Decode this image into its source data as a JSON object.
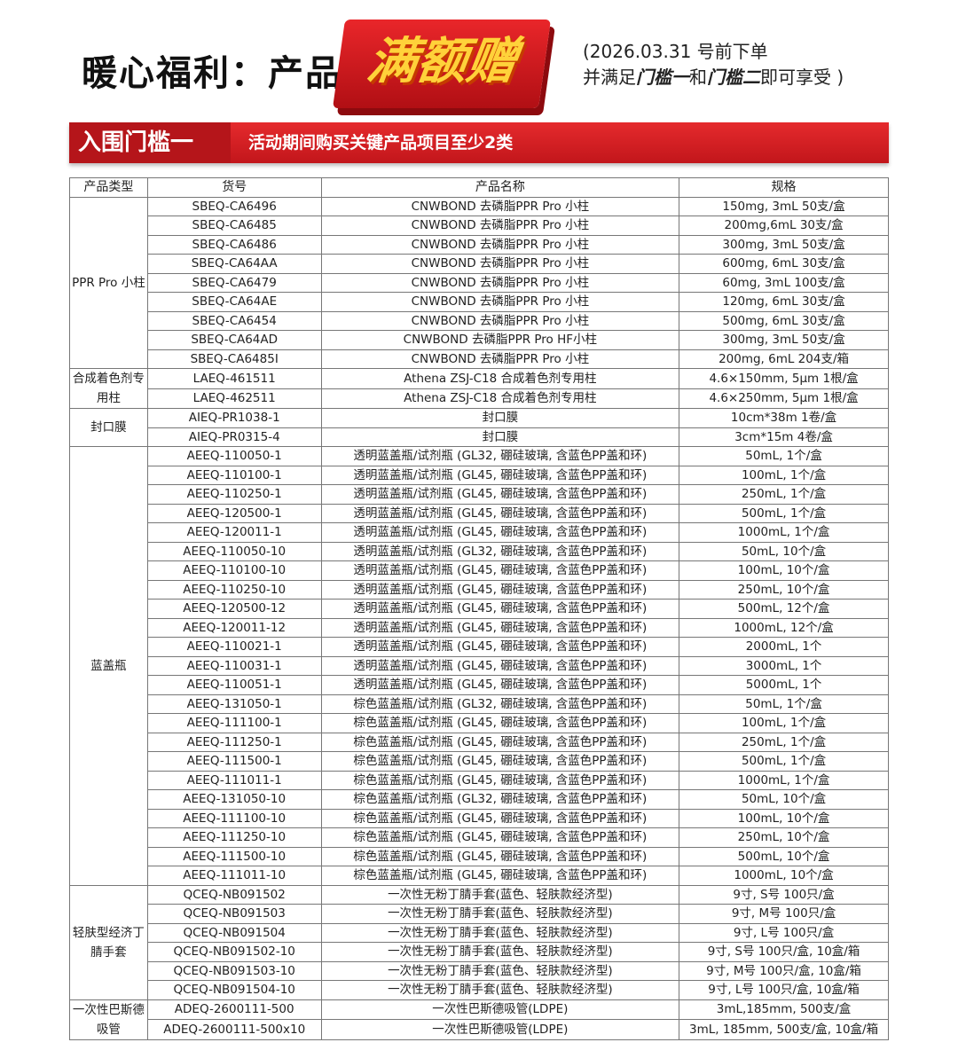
{
  "header": {
    "title": "暖心福利：产品",
    "promo": "满额赠",
    "note_line1": "(2026.03.31 号前下单",
    "note_pre": "并满足",
    "note_b1": "门槛一",
    "note_mid": "和",
    "note_b2": "门槛二",
    "note_post": "即可享受 )"
  },
  "banner": {
    "tag": "入围门槛一",
    "desc": "活动期间购买关键产品项目至少2类"
  },
  "table": {
    "columns": [
      "产品类型",
      "货号",
      "产品名称",
      "规格"
    ],
    "groups": [
      {
        "type": "PPR Pro 小柱",
        "rows": [
          [
            "SBEQ-CA6496",
            "CNWBOND 去磷脂PPR Pro 小柱",
            "150mg, 3mL 50支/盒"
          ],
          [
            "SBEQ-CA6485",
            "CNWBOND 去磷脂PPR Pro 小柱",
            "200mg,6mL 30支/盒"
          ],
          [
            "SBEQ-CA6486",
            "CNWBOND 去磷脂PPR Pro 小柱",
            "300mg, 3mL 50支/盒"
          ],
          [
            "SBEQ-CA64AA",
            "CNWBOND 去磷脂PPR Pro 小柱",
            "600mg, 6mL 30支/盒"
          ],
          [
            "SBEQ-CA6479",
            "CNWBOND 去磷脂PPR Pro 小柱",
            "60mg, 3mL 100支/盒"
          ],
          [
            "SBEQ-CA64AE",
            "CNWBOND 去磷脂PPR Pro 小柱",
            "120mg, 6mL 30支/盒"
          ],
          [
            "SBEQ-CA6454",
            "CNWBOND 去磷脂PPR Pro 小柱",
            "500mg, 6mL 30支/盒"
          ],
          [
            "SBEQ-CA64AD",
            "CNWBOND 去磷脂PPR Pro HF小柱",
            "300mg, 3mL 50支/盒"
          ],
          [
            "SBEQ-CA6485I",
            "CNWBOND 去磷脂PPR Pro 小柱",
            "200mg, 6mL 204支/箱"
          ]
        ]
      },
      {
        "type": "合成着色剂专用柱",
        "rows": [
          [
            "LAEQ-461511",
            "Athena ZSJ-C18 合成着色剂专用柱",
            "4.6×150mm, 5μm 1根/盒"
          ],
          [
            "LAEQ-462511",
            "Athena ZSJ-C18 合成着色剂专用柱",
            "4.6×250mm, 5μm 1根/盒"
          ]
        ]
      },
      {
        "type": "封口膜",
        "rows": [
          [
            "AIEQ-PR1038-1",
            "封口膜",
            "10cm*38m 1卷/盒"
          ],
          [
            "AIEQ-PR0315-4",
            "封口膜",
            "3cm*15m 4卷/盒"
          ]
        ]
      },
      {
        "type": "蓝盖瓶",
        "rows": [
          [
            "AEEQ-110050-1",
            "透明蓝盖瓶/试剂瓶 (GL32, 硼硅玻璃, 含蓝色PP盖和环)",
            "50mL, 1个/盒"
          ],
          [
            "AEEQ-110100-1",
            "透明蓝盖瓶/试剂瓶 (GL45, 硼硅玻璃, 含蓝色PP盖和环)",
            "100mL, 1个/盒"
          ],
          [
            "AEEQ-110250-1",
            "透明蓝盖瓶/试剂瓶 (GL45, 硼硅玻璃, 含蓝色PP盖和环)",
            "250mL, 1个/盒"
          ],
          [
            "AEEQ-120500-1",
            "透明蓝盖瓶/试剂瓶 (GL45, 硼硅玻璃, 含蓝色PP盖和环)",
            "500mL, 1个/盒"
          ],
          [
            "AEEQ-120011-1",
            "透明蓝盖瓶/试剂瓶 (GL45, 硼硅玻璃, 含蓝色PP盖和环)",
            "1000mL, 1个/盒"
          ],
          [
            "AEEQ-110050-10",
            "透明蓝盖瓶/试剂瓶 (GL32, 硼硅玻璃, 含蓝色PP盖和环)",
            "50mL, 10个/盒"
          ],
          [
            "AEEQ-110100-10",
            "透明蓝盖瓶/试剂瓶 (GL45, 硼硅玻璃, 含蓝色PP盖和环)",
            "100mL, 10个/盒"
          ],
          [
            "AEEQ-110250-10",
            "透明蓝盖瓶/试剂瓶 (GL45, 硼硅玻璃, 含蓝色PP盖和环)",
            "250mL, 10个/盒"
          ],
          [
            "AEEQ-120500-12",
            "透明蓝盖瓶/试剂瓶 (GL45, 硼硅玻璃, 含蓝色PP盖和环)",
            "500mL, 12个/盒"
          ],
          [
            "AEEQ-120011-12",
            "透明蓝盖瓶/试剂瓶 (GL45, 硼硅玻璃, 含蓝色PP盖和环)",
            "1000mL, 12个/盒"
          ],
          [
            "AEEQ-110021-1",
            "透明蓝盖瓶/试剂瓶 (GL45, 硼硅玻璃, 含蓝色PP盖和环)",
            "2000mL, 1个"
          ],
          [
            "AEEQ-110031-1",
            "透明蓝盖瓶/试剂瓶 (GL45, 硼硅玻璃, 含蓝色PP盖和环)",
            "3000mL, 1个"
          ],
          [
            "AEEQ-110051-1",
            "透明蓝盖瓶/试剂瓶 (GL45, 硼硅玻璃, 含蓝色PP盖和环)",
            "5000mL, 1个"
          ],
          [
            "AEEQ-131050-1",
            "棕色蓝盖瓶/试剂瓶 (GL32, 硼硅玻璃, 含蓝色PP盖和环)",
            "50mL, 1个/盒"
          ],
          [
            "AEEQ-111100-1",
            "棕色蓝盖瓶/试剂瓶 (GL45, 硼硅玻璃, 含蓝色PP盖和环)",
            "100mL, 1个/盒"
          ],
          [
            "AEEQ-111250-1",
            "棕色蓝盖瓶/试剂瓶 (GL45, 硼硅玻璃, 含蓝色PP盖和环)",
            "250mL, 1个/盒"
          ],
          [
            "AEEQ-111500-1",
            "棕色蓝盖瓶/试剂瓶 (GL45, 硼硅玻璃, 含蓝色PP盖和环)",
            "500mL, 1个/盒"
          ],
          [
            "AEEQ-111011-1",
            "棕色蓝盖瓶/试剂瓶 (GL45, 硼硅玻璃, 含蓝色PP盖和环)",
            "1000mL, 1个/盒"
          ],
          [
            "AEEQ-131050-10",
            "棕色蓝盖瓶/试剂瓶 (GL32, 硼硅玻璃, 含蓝色PP盖和环)",
            "50mL, 10个/盒"
          ],
          [
            "AEEQ-111100-10",
            "棕色蓝盖瓶/试剂瓶 (GL45, 硼硅玻璃, 含蓝色PP盖和环)",
            "100mL, 10个/盒"
          ],
          [
            "AEEQ-111250-10",
            "棕色蓝盖瓶/试剂瓶 (GL45, 硼硅玻璃, 含蓝色PP盖和环)",
            "250mL, 10个/盒"
          ],
          [
            "AEEQ-111500-10",
            "棕色蓝盖瓶/试剂瓶 (GL45, 硼硅玻璃, 含蓝色PP盖和环)",
            "500mL, 10个/盒"
          ],
          [
            "AEEQ-111011-10",
            "棕色蓝盖瓶/试剂瓶 (GL45, 硼硅玻璃, 含蓝色PP盖和环)",
            "1000mL, 10个/盒"
          ]
        ]
      },
      {
        "type": "轻肤型经济丁腈手套",
        "rows": [
          [
            "QCEQ-NB091502",
            "一次性无粉丁腈手套(蓝色、轻肤款经济型)",
            "9寸, S号 100只/盒"
          ],
          [
            "QCEQ-NB091503",
            "一次性无粉丁腈手套(蓝色、轻肤款经济型)",
            "9寸, M号 100只/盒"
          ],
          [
            "QCEQ-NB091504",
            "一次性无粉丁腈手套(蓝色、轻肤款经济型)",
            "9寸, L号 100只/盒"
          ],
          [
            "QCEQ-NB091502-10",
            "一次性无粉丁腈手套(蓝色、轻肤款经济型)",
            "9寸, S号 100只/盒, 10盒/箱"
          ],
          [
            "QCEQ-NB091503-10",
            "一次性无粉丁腈手套(蓝色、轻肤款经济型)",
            "9寸, M号 100只/盒, 10盒/箱"
          ],
          [
            "QCEQ-NB091504-10",
            "一次性无粉丁腈手套(蓝色、轻肤款经济型)",
            "9寸, L号 100只/盒, 10盒/箱"
          ]
        ]
      },
      {
        "type": "一次性巴斯德吸管",
        "rows": [
          [
            "ADEQ-2600111-500",
            "一次性巴斯德吸管(LDPE)",
            "3mL,185mm, 500支/盒"
          ],
          [
            "ADEQ-2600111-500x10",
            "一次性巴斯德吸管(LDPE)",
            "3mL, 185mm, 500支/盒, 10盒/箱"
          ]
        ]
      }
    ]
  },
  "colors": {
    "accent": "#d81e23",
    "promo_text": "#ffd23a"
  }
}
